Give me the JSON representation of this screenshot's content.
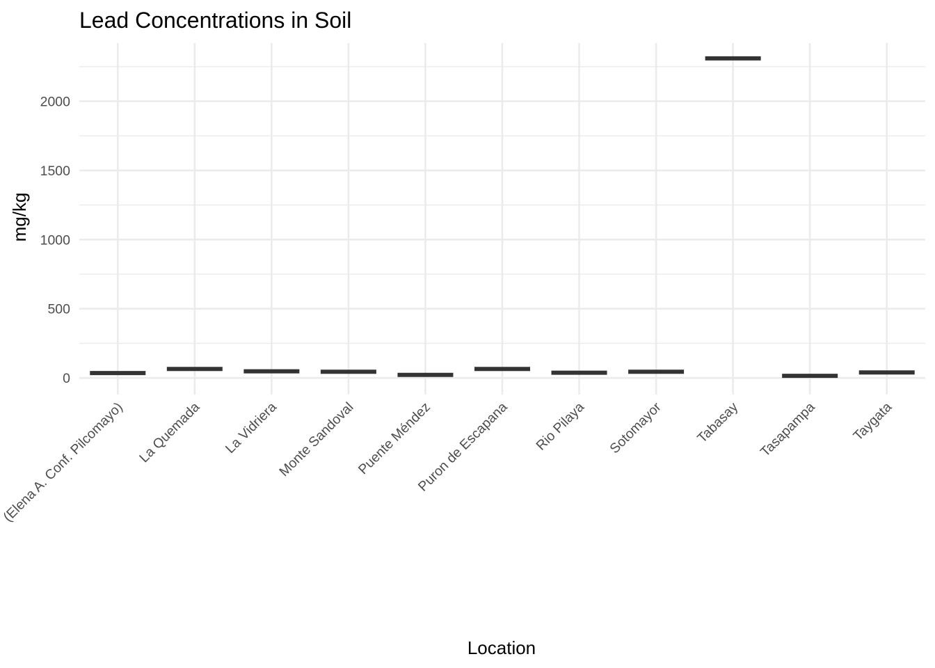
{
  "chart_data": {
    "type": "bar",
    "title": "Lead Concentrations in Soil",
    "xlabel": "Location",
    "ylabel": "mg/kg",
    "categories": [
      "(Elena A. Conf. Pilcomayo)",
      "La Quemada",
      "La Vidriera",
      "Monte Sandoval",
      "Puente Méndez",
      "Puron de Escapana",
      "Rio Pilaya",
      "Sotomayor",
      "Tabasay",
      "Tasapampa",
      "Taygata"
    ],
    "values": [
      35,
      65,
      48,
      45,
      22,
      65,
      38,
      45,
      2310,
      15,
      40
    ],
    "ylim": [
      -120,
      2420
    ],
    "yticks": [
      0,
      500,
      1000,
      1500,
      2000
    ],
    "ytick_labels": [
      "0",
      "500",
      "1000",
      "1500",
      "2000"
    ],
    "grid": true,
    "legend": "none",
    "mark_color": "#333333",
    "grid_color": "#ebebeb"
  }
}
